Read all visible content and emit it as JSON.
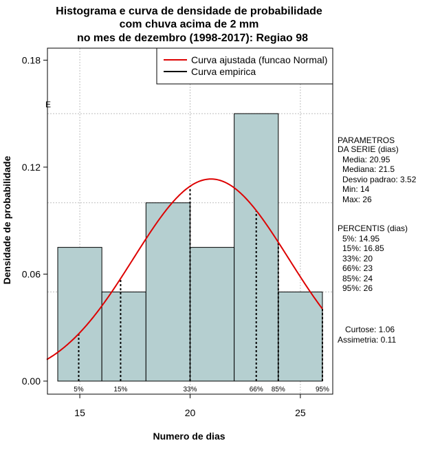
{
  "chart_data": {
    "type": "bar",
    "title_lines": [
      "Histograma e curva de densidade de probabilidade",
      "com chuva acima de 2 mm",
      "no mes de dezembro (1998-2017): Regiao 98"
    ],
    "xlabel": "Numero de dias",
    "ylabel": "Densidade de probabilidade",
    "xlim": [
      13.5,
      26.0
    ],
    "ylim": [
      0.0,
      0.18
    ],
    "x_ticks": [
      "15",
      "20",
      "25"
    ],
    "x_tick_values": [
      15,
      20,
      25
    ],
    "y_ticks": [
      "0.00",
      "0.06",
      "0.12",
      "0.18"
    ],
    "y_tick_values": [
      0.0,
      0.06,
      0.12,
      0.18
    ],
    "bins": [
      {
        "from": 14,
        "to": 16,
        "density": 0.075
      },
      {
        "from": 16,
        "to": 18,
        "density": 0.05
      },
      {
        "from": 18,
        "to": 20,
        "density": 0.1
      },
      {
        "from": 20,
        "to": 22,
        "density": 0.075
      },
      {
        "from": 22,
        "to": 24,
        "density": 0.15
      },
      {
        "from": 24,
        "to": 26,
        "density": 0.05
      }
    ],
    "bar_color": "#b5cfd0",
    "curve_color": "#dd0000",
    "normal_fit": {
      "mean": 20.95,
      "sd": 3.52
    },
    "grid_y": [
      0.05,
      0.1,
      0.15
    ],
    "grid_x": [
      15,
      20,
      25
    ],
    "percentile_lines": [
      {
        "label": "5%",
        "x": 14.95
      },
      {
        "label": "15%",
        "x": 16.85
      },
      {
        "label": "33%",
        "x": 20
      },
      {
        "label": "66%",
        "x": 23
      },
      {
        "label": "85%",
        "x": 24
      },
      {
        "label": "95%",
        "x": 26
      }
    ],
    "legend": {
      "position": "top-right",
      "items": [
        {
          "label": "Curva ajustada (funcao Normal)",
          "color": "#dd0000"
        },
        {
          "label": "Curva empirica",
          "color": "#000000"
        }
      ]
    },
    "stray_mark": "E",
    "parametros": {
      "header": [
        "PARAMETROS",
        "DA SERIE (dias)"
      ],
      "items": [
        "Media: 20.95",
        "Mediana: 21.5",
        "Desvio padrao: 3.52",
        "Min: 14",
        "Max: 26"
      ]
    },
    "percentis": {
      "header": "PERCENTIS (dias)",
      "items": [
        "5%: 14.95",
        "15%: 16.85",
        "33%: 20",
        "66%: 23",
        "85%: 24",
        "95%: 26"
      ]
    },
    "shape": {
      "items": [
        "Curtose: 1.06",
        "Assimetria: 0.11"
      ]
    }
  }
}
